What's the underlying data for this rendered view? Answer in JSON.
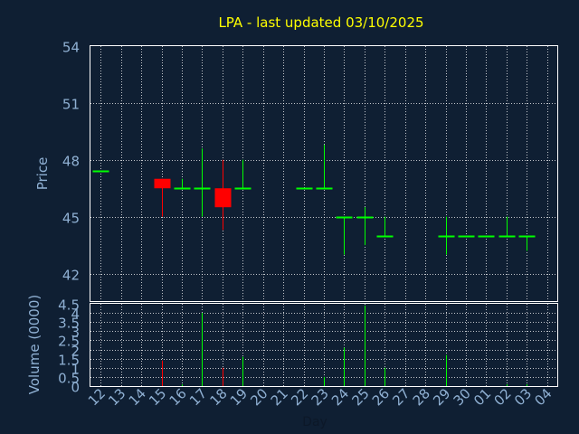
{
  "chart_data": {
    "type": "candlestick",
    "title": "LPA - last updated 03/10/2025",
    "price_axis": {
      "label": "Price",
      "range": [
        40.5,
        54
      ],
      "ticks": [
        42,
        45,
        48,
        51,
        54
      ]
    },
    "volume_axis": {
      "label": "Volume (0000)",
      "range": [
        0,
        4.5
      ],
      "ticks": [
        0,
        0.5,
        1,
        1.5,
        2,
        2.5,
        3,
        3.5,
        4,
        4.5
      ]
    },
    "x_axis": {
      "label": "Day",
      "ticks": [
        "12",
        "13",
        "14",
        "15",
        "16",
        "17",
        "18",
        "19",
        "20",
        "21",
        "22",
        "23",
        "24",
        "25",
        "26",
        "27",
        "28",
        "29",
        "30",
        "01",
        "02",
        "03",
        "04"
      ]
    },
    "grid": true,
    "colors": {
      "up": "#00ff00",
      "down": "#ff0000",
      "background": "#0f1f33",
      "title": "#ffff00",
      "axis": "#8fb0d3"
    },
    "candles": [
      {
        "i": 0,
        "open": 47.4,
        "high": 47.4,
        "low": 47.4,
        "close": 47.4,
        "volume": 0,
        "dir": "up"
      },
      {
        "i": 3,
        "open": 47.0,
        "high": 47.0,
        "low": 45.0,
        "close": 46.5,
        "volume": 1.4,
        "dir": "down"
      },
      {
        "i": 4,
        "open": 46.5,
        "high": 47.0,
        "low": 46.5,
        "close": 46.5,
        "volume": 0.1,
        "dir": "up"
      },
      {
        "i": 5,
        "open": 46.5,
        "high": 48.6,
        "low": 45.0,
        "close": 46.5,
        "volume": 4.0,
        "dir": "up"
      },
      {
        "i": 6,
        "open": 46.5,
        "high": 48.0,
        "low": 44.3,
        "close": 45.5,
        "volume": 1.0,
        "dir": "down"
      },
      {
        "i": 7,
        "open": 46.5,
        "high": 48.0,
        "low": 46.5,
        "close": 46.5,
        "volume": 1.6,
        "dir": "up"
      },
      {
        "i": 10,
        "open": 46.5,
        "high": 46.5,
        "low": 46.5,
        "close": 46.5,
        "volume": 0,
        "dir": "up"
      },
      {
        "i": 11,
        "open": 46.5,
        "high": 48.8,
        "low": 46.5,
        "close": 46.5,
        "volume": 0.5,
        "dir": "up"
      },
      {
        "i": 12,
        "open": 45.0,
        "high": 45.0,
        "low": 43.0,
        "close": 45.0,
        "volume": 2.1,
        "dir": "up"
      },
      {
        "i": 13,
        "open": 45.0,
        "high": 45.5,
        "low": 43.5,
        "close": 45.0,
        "volume": 4.4,
        "dir": "up"
      },
      {
        "i": 14,
        "open": 44.0,
        "high": 45.0,
        "low": 44.0,
        "close": 44.0,
        "volume": 1.0,
        "dir": "up"
      },
      {
        "i": 17,
        "open": 44.0,
        "high": 45.0,
        "low": 43.0,
        "close": 44.0,
        "volume": 1.7,
        "dir": "up"
      },
      {
        "i": 18,
        "open": 44.0,
        "high": 44.0,
        "low": 44.0,
        "close": 44.0,
        "volume": 0,
        "dir": "up"
      },
      {
        "i": 19,
        "open": 44.0,
        "high": 44.0,
        "low": 44.0,
        "close": 44.0,
        "volume": 0,
        "dir": "up"
      },
      {
        "i": 20,
        "open": 44.0,
        "high": 45.0,
        "low": 44.0,
        "close": 44.0,
        "volume": 0.1,
        "dir": "up"
      },
      {
        "i": 21,
        "open": 44.0,
        "high": 44.0,
        "low": 43.2,
        "close": 44.0,
        "volume": 0.1,
        "dir": "up"
      }
    ]
  }
}
